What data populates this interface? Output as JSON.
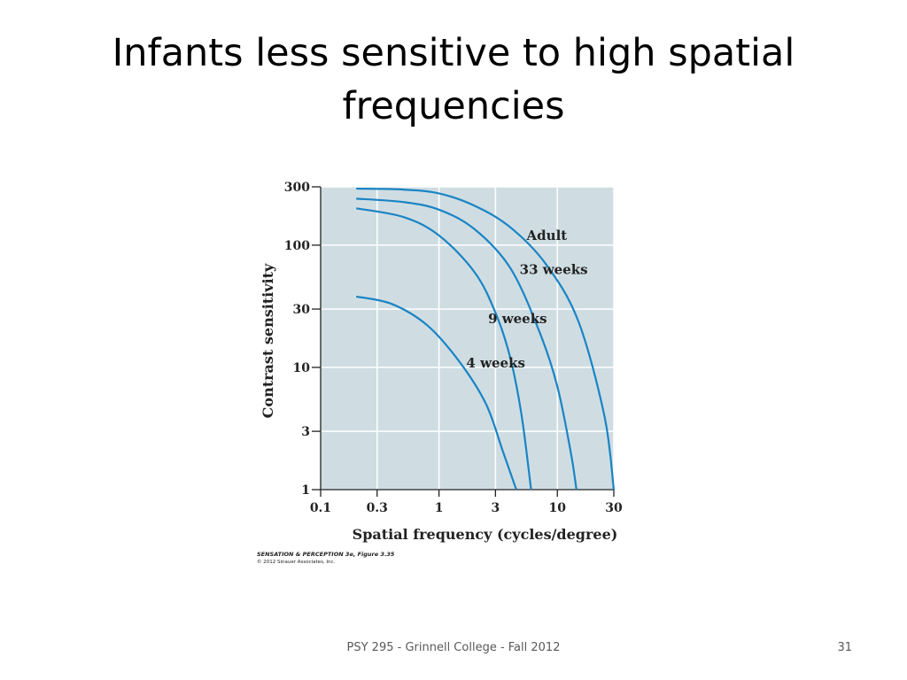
{
  "slide": {
    "title": "Infants less sensitive to high spatial frequencies",
    "footer": "PSY 295 - Grinnell College - Fall 2012",
    "page_number": "31"
  },
  "figure_credit": {
    "line1": "SENSATION & PERCEPTION 3e, Figure 3.35",
    "line2": "© 2012 Sinauer Associates, Inc."
  },
  "chart_data": {
    "type": "line",
    "xlabel": "Spatial frequency (cycles/degree)",
    "ylabel": "Contrast sensitivity",
    "x_scale": "log",
    "y_scale": "log",
    "xlim": [
      0.1,
      30
    ],
    "ylim": [
      1,
      300
    ],
    "x_ticks": [
      0.1,
      0.3,
      1,
      3,
      10,
      30
    ],
    "x_tick_labels": [
      "0.1",
      "0.3",
      "1",
      "3",
      "10",
      "30"
    ],
    "y_ticks": [
      1,
      3,
      10,
      30,
      100,
      300
    ],
    "y_tick_labels": [
      "1",
      "3",
      "10",
      "30",
      "100",
      "300"
    ],
    "grid": true,
    "colors": {
      "plot_bg": "#cfdde3",
      "line": "#1a84c4",
      "grid": "#ffffff"
    },
    "series": [
      {
        "name": "Adult",
        "x": [
          0.2,
          0.5,
          1,
          2,
          4,
          8,
          15,
          25,
          30
        ],
        "y": [
          290,
          285,
          265,
          210,
          140,
          70,
          24,
          4,
          1
        ]
      },
      {
        "name": "33 weeks",
        "x": [
          0.2,
          0.5,
          1,
          2,
          4,
          7,
          10,
          13,
          14.5
        ],
        "y": [
          240,
          225,
          195,
          135,
          65,
          20,
          7,
          2,
          1
        ]
      },
      {
        "name": "9 weeks",
        "x": [
          0.2,
          0.5,
          1,
          2,
          3,
          4,
          5,
          6
        ],
        "y": [
          200,
          170,
          120,
          60,
          28,
          12,
          4,
          1
        ]
      },
      {
        "name": "4 weeks",
        "x": [
          0.2,
          0.4,
          0.8,
          1.5,
          2.5,
          3.5,
          4.5
        ],
        "y": [
          38,
          33,
          22,
          11,
          5,
          2,
          1
        ]
      }
    ]
  }
}
